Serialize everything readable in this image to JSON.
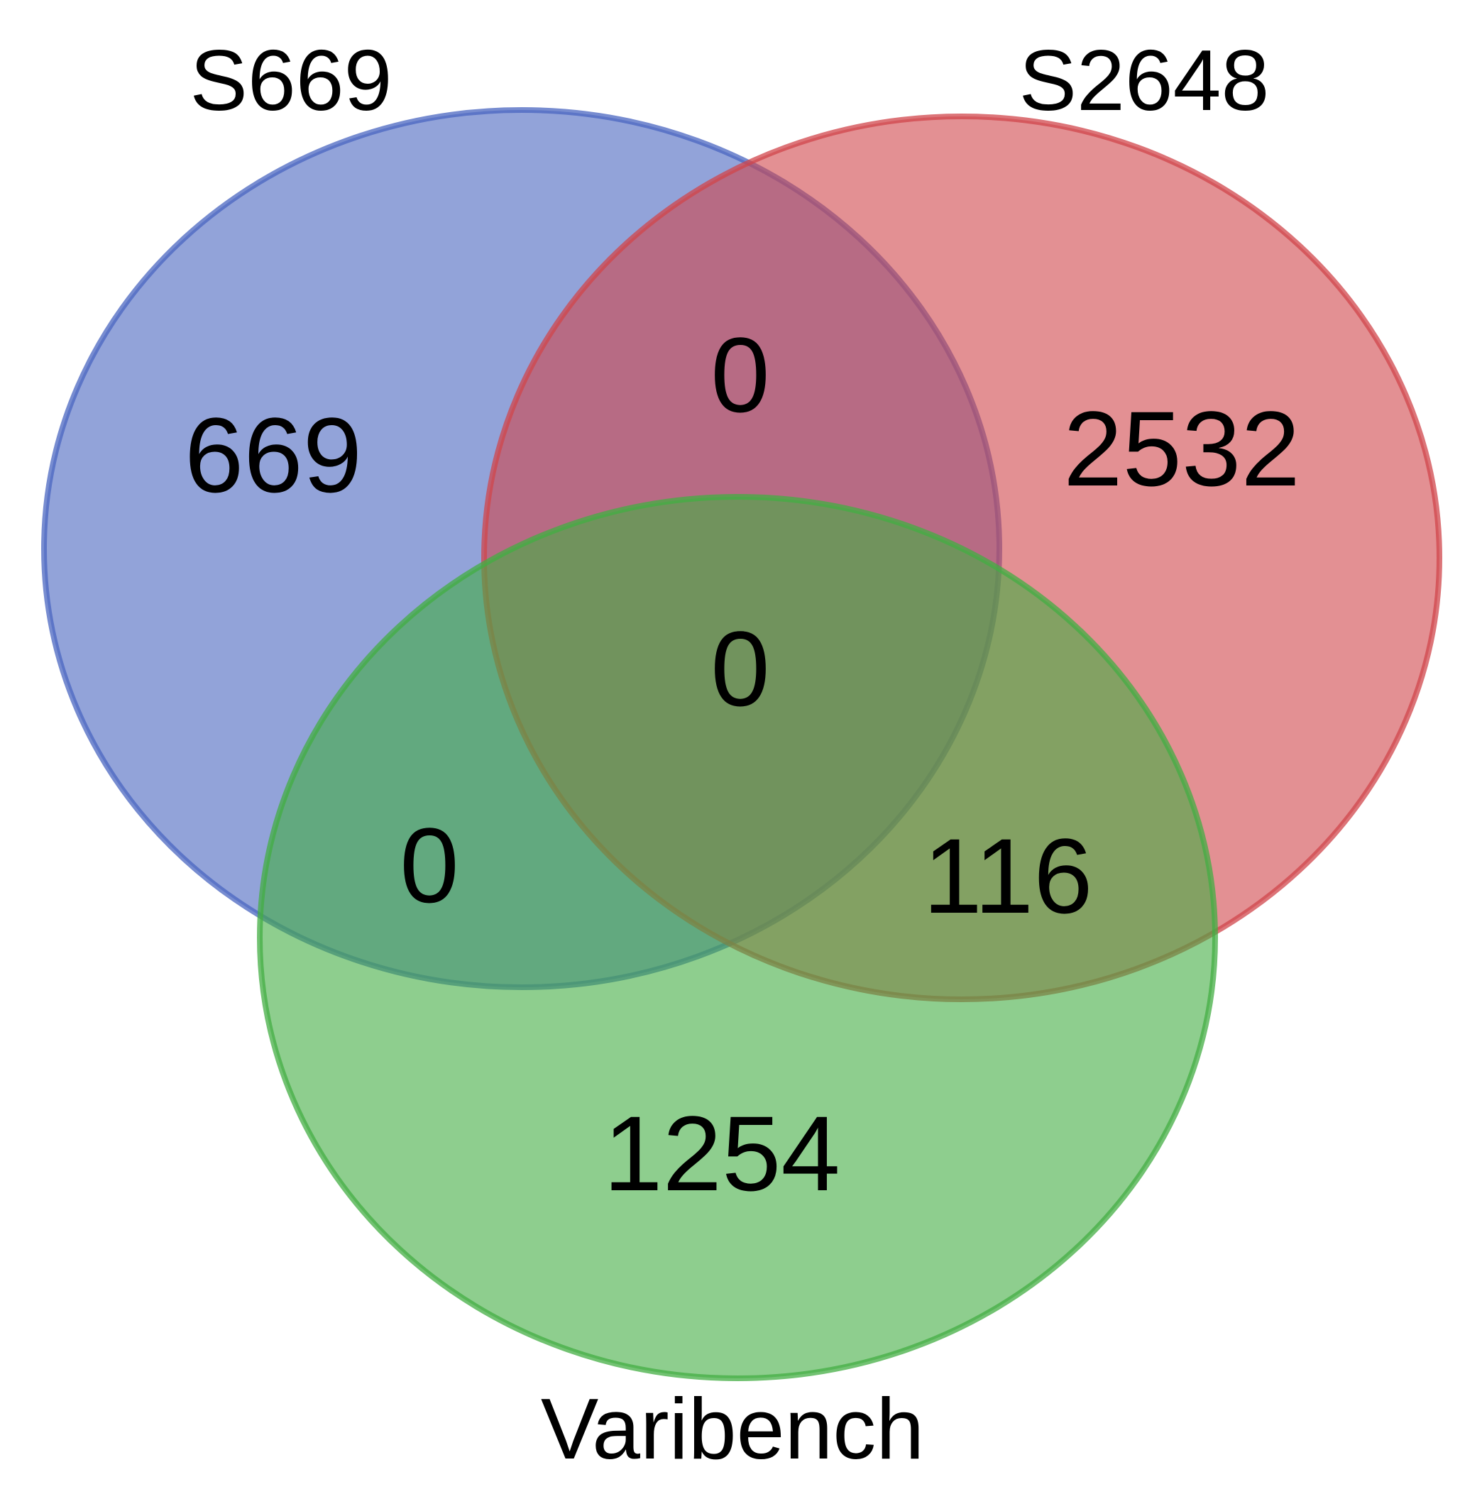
{
  "sets": [
    {
      "name": "S669",
      "color": "#4a66c0",
      "fill": "#8a9dd6"
    },
    {
      "name": "S2648",
      "color": "#d0464b",
      "fill": "#e58b8b"
    },
    {
      "name": "Varibench",
      "color": "#43ad43",
      "fill": "#8bce8b"
    }
  ],
  "regions": {
    "s669_only": "669",
    "s2648_only": "2532",
    "varibench_only": "1254",
    "s669_s2648": "0",
    "s669_varibench": "0",
    "s2648_varibench": "116",
    "all_three": "0"
  }
}
